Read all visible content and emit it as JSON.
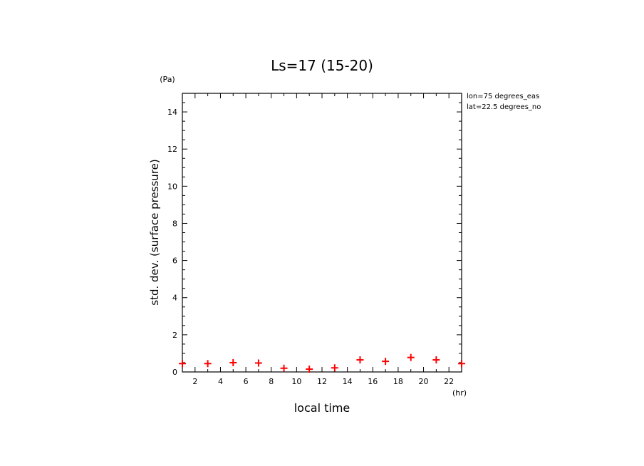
{
  "chart_data": {
    "type": "scatter",
    "title": "Ls=17 (15-20)",
    "xlabel": "local time",
    "ylabel": "std. dev. (surface pressure)",
    "x_unit": "(hr)",
    "y_unit": "(Pa)",
    "annotations": [
      "lon=75 degrees_eas",
      "lat=22.5 degrees_no"
    ],
    "xlim": [
      1,
      23
    ],
    "ylim": [
      0,
      15
    ],
    "x_ticks": [
      2,
      4,
      6,
      8,
      10,
      12,
      14,
      16,
      18,
      20,
      22
    ],
    "y_ticks": [
      0,
      2,
      4,
      6,
      8,
      10,
      12,
      14
    ],
    "marker": "+",
    "marker_color": "#ff0000",
    "grid": false,
    "series": [
      {
        "x": [
          1,
          3,
          5,
          7,
          9,
          11,
          13,
          15,
          17,
          19,
          21,
          23
        ],
        "values": [
          0.45,
          0.45,
          0.5,
          0.48,
          0.2,
          0.15,
          0.22,
          0.65,
          0.57,
          0.78,
          0.65,
          0.45
        ]
      }
    ]
  }
}
